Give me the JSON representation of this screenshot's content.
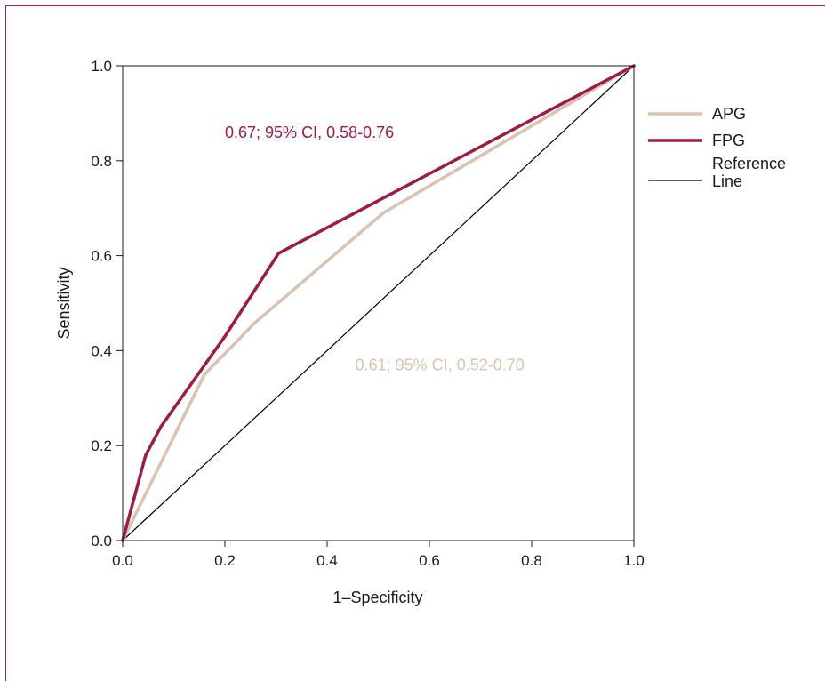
{
  "chart_data": {
    "type": "line",
    "xlabel": "1–Specificity",
    "ylabel": "Sensitivity",
    "xlim": [
      0,
      1
    ],
    "ylim": [
      0,
      1
    ],
    "x_ticks": [
      "0.0",
      "0.2",
      "0.4",
      "0.6",
      "0.8",
      "1.0"
    ],
    "y_ticks": [
      "0.0",
      "0.2",
      "0.4",
      "0.6",
      "0.8",
      "1.0"
    ],
    "legend_placement": "right",
    "grid": false,
    "series": [
      {
        "name": "APG",
        "color": "#d9c3b0",
        "x": [
          0.0,
          0.16,
          0.26,
          0.51,
          1.0
        ],
        "y": [
          0.0,
          0.35,
          0.46,
          0.69,
          1.0
        ]
      },
      {
        "name": "FPG",
        "color": "#9e1b44",
        "x": [
          0.0,
          0.045,
          0.075,
          0.2,
          0.305,
          1.0
        ],
        "y": [
          0.0,
          0.18,
          0.24,
          0.43,
          0.605,
          1.0
        ]
      },
      {
        "name": "Reference Line",
        "legend_lines": [
          "Reference",
          "Line"
        ],
        "color": "#000000",
        "x": [
          0.0,
          1.0
        ],
        "y": [
          0.0,
          1.0
        ]
      }
    ],
    "annotations": [
      {
        "text": "0.67; 95% CI, 0.58-0.76",
        "color": "#9e1b44",
        "x": 0.2,
        "y": 0.86
      },
      {
        "text": "0.61; 95% CI, 0.52-0.70",
        "color": "#d9c3b0",
        "x": 0.455,
        "y": 0.37
      }
    ]
  }
}
